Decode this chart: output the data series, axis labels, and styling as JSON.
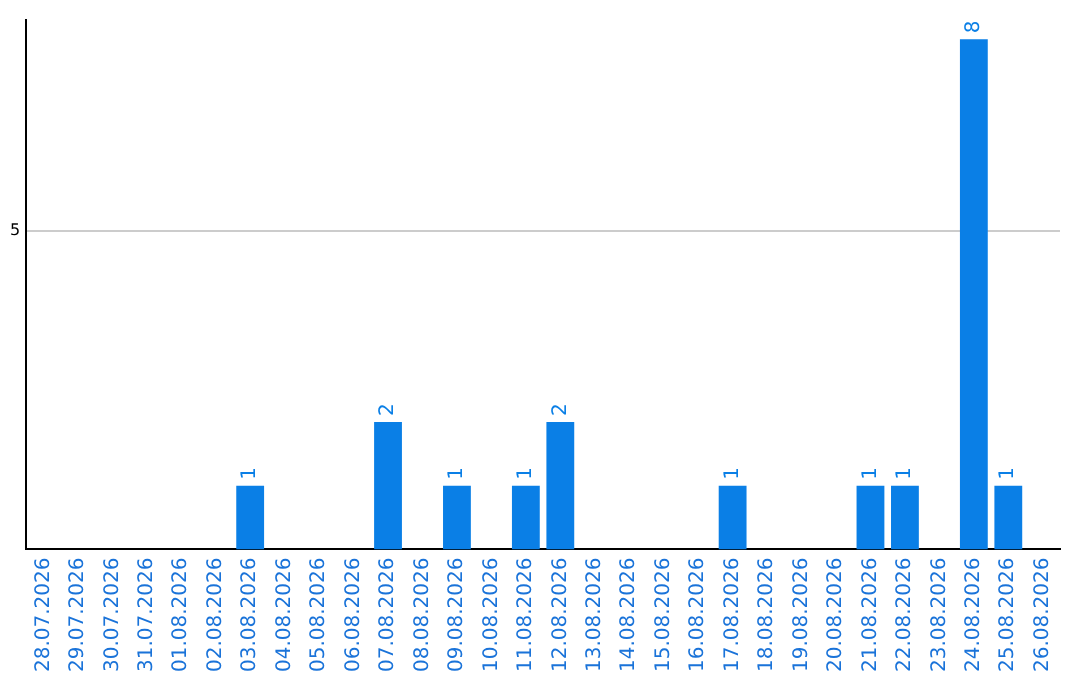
{
  "chart_data": {
    "type": "bar",
    "categories": [
      "28.07.2026",
      "29.07.2026",
      "30.07.2026",
      "31.07.2026",
      "01.08.2026",
      "02.08.2026",
      "03.08.2026",
      "04.08.2026",
      "05.08.2026",
      "06.08.2026",
      "07.08.2026",
      "08.08.2026",
      "09.08.2026",
      "10.08.2026",
      "11.08.2026",
      "12.08.2026",
      "13.08.2026",
      "14.08.2026",
      "15.08.2026",
      "16.08.2026",
      "17.08.2026",
      "18.08.2026",
      "19.08.2026",
      "20.08.2026",
      "21.08.2026",
      "22.08.2026",
      "23.08.2026",
      "24.08.2026",
      "25.08.2026",
      "26.08.2026"
    ],
    "values": [
      0,
      0,
      0,
      0,
      0,
      0,
      1,
      0,
      0,
      0,
      2,
      0,
      1,
      0,
      1,
      2,
      0,
      0,
      0,
      0,
      1,
      0,
      0,
      0,
      1,
      1,
      0,
      8,
      1,
      0
    ],
    "value_labels": [
      null,
      null,
      null,
      null,
      null,
      null,
      "1",
      null,
      null,
      null,
      "2",
      null,
      "1",
      null,
      "1",
      "2",
      null,
      null,
      null,
      null,
      "1",
      null,
      null,
      null,
      "1",
      "1",
      null,
      "8",
      "1",
      null
    ],
    "color": "#0a7fe6",
    "ylim": [
      0,
      8.3
    ],
    "yticks": [
      5
    ],
    "grid": "y",
    "legend": false
  }
}
